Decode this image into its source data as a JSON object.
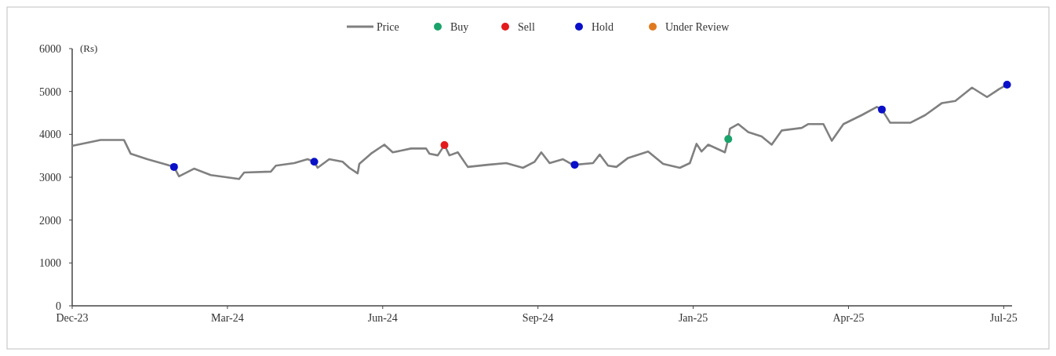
{
  "chart_data": {
    "type": "line",
    "marker": "circle",
    "ylabel": "(Rs)",
    "xlim": [
      "2023-12-26",
      "2025-07-11"
    ],
    "xticks": [
      {
        "value": "2023-12-26",
        "label": "Dec-23"
      },
      {
        "value": "2024-03-28",
        "label": "Mar-24"
      },
      {
        "value": "2024-06-29",
        "label": "Jun-24"
      },
      {
        "value": "2024-09-30",
        "label": "Sep-24"
      },
      {
        "value": "2025-01-01",
        "label": "Jan-25"
      },
      {
        "value": "2025-04-04",
        "label": "Apr-25"
      },
      {
        "value": "2025-07-06",
        "label": "Jul-25"
      }
    ],
    "ylim": [
      0,
      6000
    ],
    "yticks": [
      0,
      1000,
      2000,
      3000,
      4000,
      5000,
      6000
    ],
    "grid": false,
    "legend": "top",
    "series": [
      {
        "name": "Price",
        "marker": "none",
        "line_style": "solid",
        "color": "#808080",
        "x": [
          "2023-12-26",
          "2024-01-12",
          "2024-01-26",
          "2024-01-30",
          "2024-02-09",
          "2024-02-21",
          "2024-02-25",
          "2024-02-28",
          "2024-03-08",
          "2024-03-18",
          "2024-04-04",
          "2024-04-07",
          "2024-04-23",
          "2024-04-26",
          "2024-05-07",
          "2024-05-15",
          "2024-05-19",
          "2024-05-21",
          "2024-05-28",
          "2024-06-05",
          "2024-06-09",
          "2024-06-14",
          "2024-06-15",
          "2024-06-22",
          "2024-06-30",
          "2024-07-05",
          "2024-07-16",
          "2024-07-25",
          "2024-07-27",
          "2024-08-01",
          "2024-08-05",
          "2024-08-08",
          "2024-08-13",
          "2024-08-19",
          "2024-08-31",
          "2024-09-11",
          "2024-09-21",
          "2024-09-28",
          "2024-10-02",
          "2024-10-07",
          "2024-10-15",
          "2024-10-20",
          "2024-10-22",
          "2024-11-02",
          "2024-11-06",
          "2024-11-11",
          "2024-11-16",
          "2024-11-23",
          "2024-12-05",
          "2024-12-14",
          "2024-12-24",
          "2024-12-30",
          "2025-01-03",
          "2025-01-06",
          "2025-01-10",
          "2025-01-20",
          "2025-01-22",
          "2025-01-23",
          "2025-01-28",
          "2025-02-03",
          "2025-02-11",
          "2025-02-17",
          "2025-02-23",
          "2025-03-07",
          "2025-03-11",
          "2025-03-20",
          "2025-03-25",
          "2025-04-01",
          "2025-04-12",
          "2025-04-21",
          "2025-04-24",
          "2025-04-29",
          "2025-05-11",
          "2025-05-20",
          "2025-05-30",
          "2025-06-07",
          "2025-06-17",
          "2025-06-26",
          "2025-07-03",
          "2025-07-08"
        ],
        "values": [
          3730,
          3870,
          3870,
          3550,
          3420,
          3290,
          3240,
          3020,
          3200,
          3050,
          2960,
          3110,
          3130,
          3270,
          3330,
          3420,
          3360,
          3220,
          3420,
          3360,
          3220,
          3090,
          3310,
          3550,
          3760,
          3580,
          3670,
          3670,
          3550,
          3510,
          3750,
          3510,
          3580,
          3240,
          3290,
          3330,
          3220,
          3360,
          3580,
          3330,
          3420,
          3310,
          3290,
          3330,
          3530,
          3270,
          3240,
          3450,
          3600,
          3310,
          3220,
          3330,
          3780,
          3600,
          3760,
          3580,
          3890,
          4130,
          4240,
          4050,
          3950,
          3760,
          4090,
          4150,
          4240,
          4240,
          3850,
          4240,
          4450,
          4640,
          4580,
          4270,
          4270,
          4450,
          4730,
          4780,
          5090,
          4870,
          5050,
          5160
        ]
      },
      {
        "name": "Buy",
        "type": "scatter",
        "color": "#1aa36a",
        "x": [
          "2025-01-22"
        ],
        "values": [
          3890
        ]
      },
      {
        "name": "Sell",
        "type": "scatter",
        "color": "#e31b1b",
        "x": [
          "2024-08-05"
        ],
        "values": [
          3750
        ]
      },
      {
        "name": "Hold",
        "type": "scatter",
        "color": "#0a10c8",
        "x": [
          "2024-02-25",
          "2024-05-19",
          "2024-10-22",
          "2025-04-24",
          "2025-07-08"
        ],
        "values": [
          3240,
          3360,
          3290,
          4580,
          5160
        ]
      },
      {
        "name": "Under Review",
        "type": "scatter",
        "color": "#e07a20"
      }
    ]
  }
}
